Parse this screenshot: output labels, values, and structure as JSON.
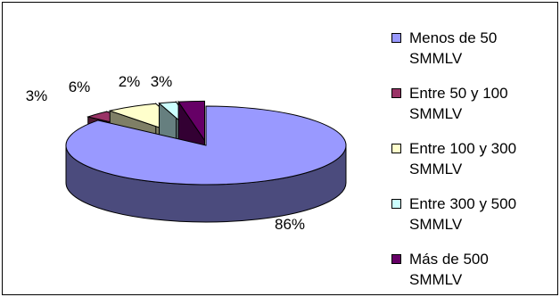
{
  "chart_data": {
    "type": "pie",
    "three_d": true,
    "title": "",
    "slices": [
      {
        "label": "Menos de 50 SMMLV",
        "value": 86,
        "display": "86%",
        "color": "#9999ff",
        "side_color": "#4b4b7d"
      },
      {
        "label": "Entre 50 y 100 SMMLV",
        "value": 3,
        "display": "3%",
        "color": "#993366",
        "side_color": "#4c1932"
      },
      {
        "label": "Entre 100 y 300 SMMLV",
        "value": 6,
        "display": "6%",
        "color": "#ffffcc",
        "side_color": "#7f7f66"
      },
      {
        "label": "Entre 300 y 500 SMMLV",
        "value": 2,
        "display": "2%",
        "color": "#ccffff",
        "side_color": "#667f7f"
      },
      {
        "label": "Más de 500 SMMLV",
        "value": 3,
        "display": "3%",
        "color": "#660066",
        "side_color": "#330033"
      }
    ],
    "legend_position": "right"
  },
  "legend": [
    {
      "line1": "Menos de 50",
      "line2": "SMMLV",
      "color": "#9999ff"
    },
    {
      "line1": "Entre 50 y 100",
      "line2": "SMMLV",
      "color": "#993366"
    },
    {
      "line1": "Entre 100 y 300",
      "line2": "SMMLV",
      "color": "#ffffcc"
    },
    {
      "line1": "Entre 300 y 500",
      "line2": "SMMLV",
      "color": "#ccffff"
    },
    {
      "line1": "Más de 500",
      "line2": "SMMLV",
      "color": "#660066"
    }
  ]
}
